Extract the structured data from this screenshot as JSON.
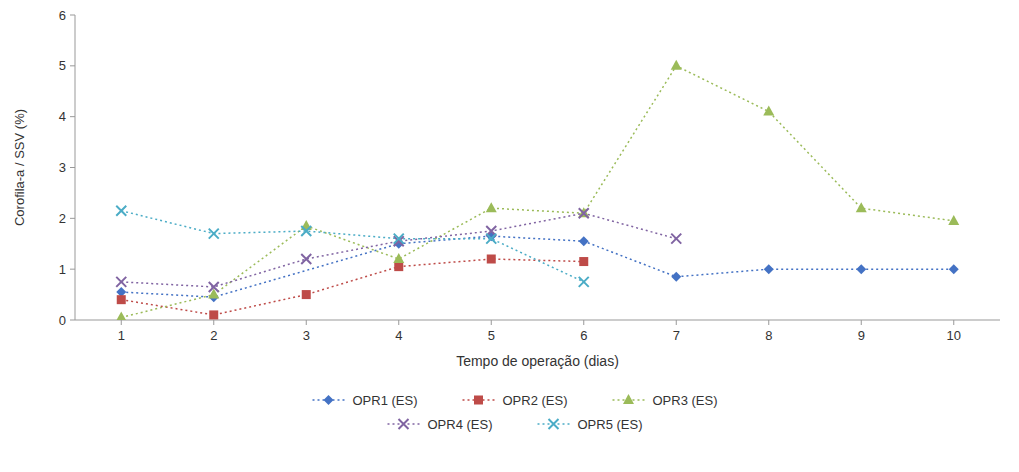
{
  "chart_data": {
    "type": "line",
    "xlabel": "Tempo de operação (dias)",
    "ylabel": "Corofila-a / SSV (%)",
    "xlim": [
      0.5,
      10.5
    ],
    "ylim": [
      0,
      6
    ],
    "xticks": [
      1,
      2,
      3,
      4,
      5,
      6,
      7,
      8,
      9,
      10
    ],
    "yticks": [
      0,
      1,
      2,
      3,
      4,
      5,
      6
    ],
    "grid": false,
    "legend": "bottom",
    "series": [
      {
        "name": "OPR1 (ES)",
        "color": "#4472C4",
        "marker": "diamond",
        "line_style": "dotted",
        "x": [
          1,
          2,
          4,
          5,
          6,
          7,
          8,
          9,
          10
        ],
        "values": [
          0.55,
          0.45,
          1.5,
          1.65,
          1.55,
          0.85,
          1.0,
          1.0,
          1.0
        ]
      },
      {
        "name": "OPR2 (ES)",
        "color": "#BE4B48",
        "marker": "square",
        "line_style": "dotted",
        "x": [
          1,
          2,
          3,
          4,
          5,
          6
        ],
        "values": [
          0.4,
          0.1,
          0.5,
          1.05,
          1.2,
          1.15
        ]
      },
      {
        "name": "OPR3 (ES)",
        "color": "#9BBB59",
        "marker": "triangle",
        "line_style": "dotted",
        "x": [
          1,
          2,
          3,
          4,
          5,
          6,
          7,
          8,
          9,
          10
        ],
        "values": [
          0.05,
          0.5,
          1.85,
          1.2,
          2.2,
          2.1,
          5.0,
          4.1,
          2.2,
          1.95
        ]
      },
      {
        "name": "OPR4 (ES)",
        "color": "#8064A2",
        "marker": "x",
        "line_style": "dotted",
        "x": [
          1,
          2,
          3,
          4,
          5,
          6,
          7
        ],
        "values": [
          0.75,
          0.65,
          1.2,
          1.55,
          1.75,
          2.1,
          1.6
        ]
      },
      {
        "name": "OPR5 (ES)",
        "color": "#4BACC6",
        "marker": "x",
        "line_style": "dotted",
        "x": [
          1,
          2,
          3,
          4,
          5,
          6
        ],
        "values": [
          2.15,
          1.7,
          1.75,
          1.6,
          1.6,
          0.75
        ]
      }
    ]
  }
}
